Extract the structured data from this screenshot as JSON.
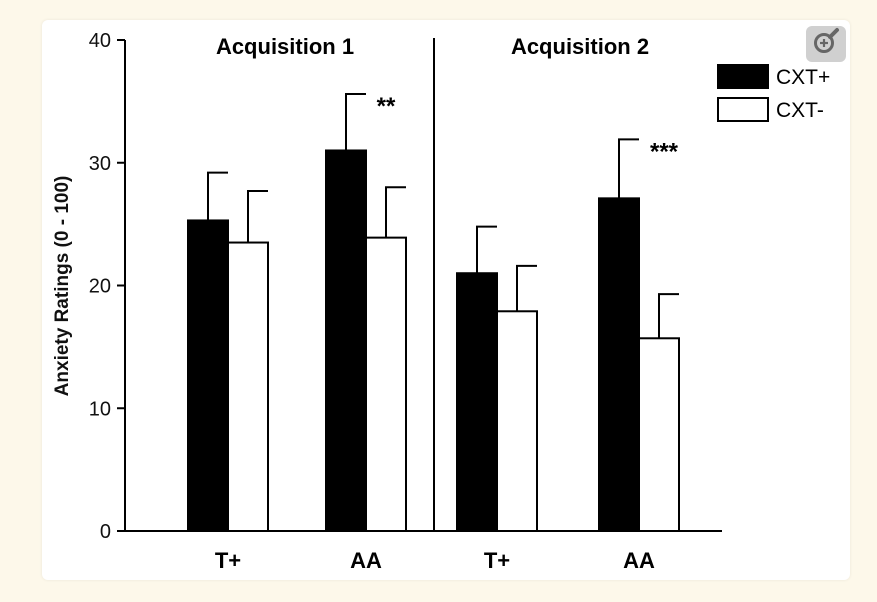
{
  "chart_data": {
    "type": "bar",
    "ylabel": "Anxiety Ratings (0 - 100)",
    "ylim": [
      0,
      40
    ],
    "yticks": [
      0,
      10,
      20,
      30,
      40
    ],
    "grid": false,
    "legend_position": "top-right",
    "groups": [
      {
        "title": "Acquisition 1",
        "categories": [
          "T+",
          "AA"
        ],
        "series": [
          {
            "name": "CXT+",
            "values": [
              25.3,
              31.0
            ],
            "errors": [
              3.9,
              4.6
            ]
          },
          {
            "name": "CXT-",
            "values": [
              23.5,
              23.9
            ],
            "errors": [
              4.2,
              4.1
            ]
          }
        ],
        "annotations": [
          {
            "category": "AA",
            "text": "**"
          }
        ]
      },
      {
        "title": "Acquisition 2",
        "categories": [
          "T+",
          "AA"
        ],
        "series": [
          {
            "name": "CXT+",
            "values": [
              21.0,
              27.1
            ],
            "errors": [
              3.8,
              4.8
            ]
          },
          {
            "name": "CXT-",
            "values": [
              17.9,
              15.7
            ],
            "errors": [
              3.7,
              3.6
            ]
          }
        ],
        "annotations": [
          {
            "category": "AA",
            "text": "***"
          }
        ]
      }
    ],
    "series_colors": {
      "CXT+": "#000000",
      "CXT-": "#ffffff"
    }
  },
  "zoom": {
    "icon": "zoom-in-icon"
  }
}
